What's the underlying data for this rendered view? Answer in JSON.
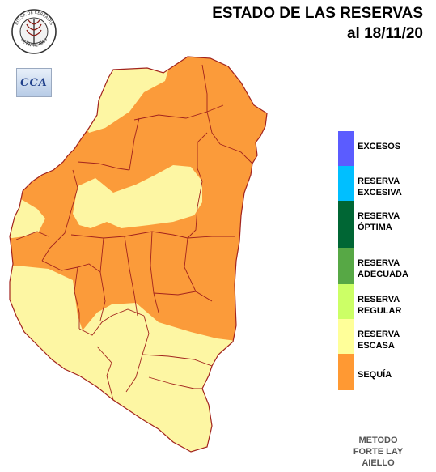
{
  "title": {
    "line1": "ESTADO DE LAS RESERVAS",
    "line2": "al 18/11/20"
  },
  "logos": {
    "bolsa_text": "BOLSA DE CEREALES DE ENTRE RIOS",
    "cca_text": "CCA"
  },
  "legend": [
    {
      "label": "EXCESOS",
      "color": "#5b5cff"
    },
    {
      "label": "RESERVA\nEXCESIVA",
      "color": "#00bfff"
    },
    {
      "label": "RESERVA\nÓPTIMA",
      "color": "#006634"
    },
    {
      "label": "RESERVA\nADECUADA",
      "color": "#57a845"
    },
    {
      "label": "RESERVA\nREGULAR",
      "color": "#ccff66"
    },
    {
      "label": "RESERVA\nESCASA",
      "color": "#ffff99"
    },
    {
      "label": "SEQUÍA",
      "color": "#ff9933"
    }
  ],
  "map_colors": {
    "sequia": "#fb9b3a",
    "escasa": "#fdf6a3",
    "border": "#a2231d"
  },
  "method": "METODO\nFORTE LAY\nAIELLO"
}
